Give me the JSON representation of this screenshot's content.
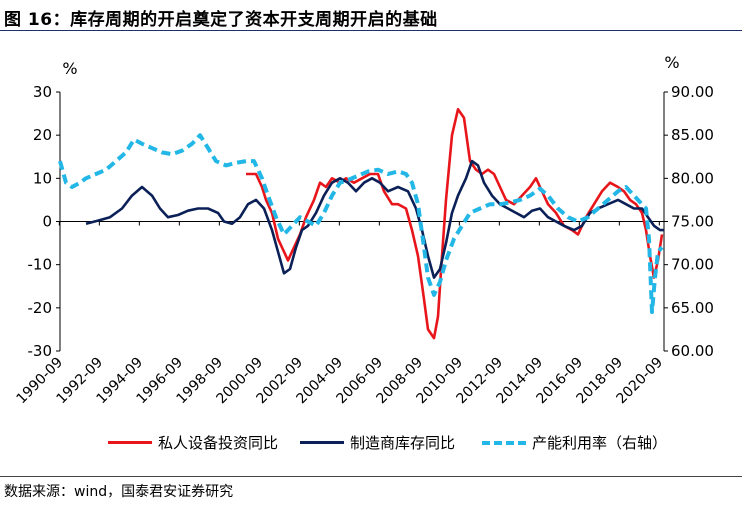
{
  "header": {
    "title": "图 16：库存周期的开启奠定了资本开支周期开启的基础"
  },
  "source": "数据来源：wind，国泰君安证券研究",
  "colors": {
    "red": "#e8161b",
    "navy": "#0b2057",
    "cyan": "#22b7e6"
  },
  "chart_data": {
    "type": "line",
    "left_axis": {
      "unit": "%",
      "ylim": [
        -30,
        30
      ],
      "ticks": [
        "30",
        "20",
        "10",
        "0",
        "-10",
        "-20",
        "-30"
      ]
    },
    "right_axis": {
      "unit": "%",
      "ylim": [
        60,
        90
      ],
      "ticks": [
        "90.00",
        "85.00",
        "80.00",
        "75.00",
        "70.00",
        "65.00",
        "60.00"
      ]
    },
    "x_ticks": [
      "1990-09",
      "1992-09",
      "1994-09",
      "1996-09",
      "1998-09",
      "2000-09",
      "2002-09",
      "2004-09",
      "2006-09",
      "2008-09",
      "2010-09",
      "2012-09",
      "2014-09",
      "2016-09",
      "2018-09",
      "2020-09"
    ],
    "xlim": [
      1990.7,
      2020.9
    ],
    "series": [
      {
        "name": "私人设备投资同比",
        "axis": "left",
        "style": "solid",
        "points": [
          [
            2000.0,
            11
          ],
          [
            2000.5,
            11
          ],
          [
            2000.8,
            8
          ],
          [
            2001.0,
            5
          ],
          [
            2001.3,
            2
          ],
          [
            2001.6,
            -4
          ],
          [
            2001.9,
            -7
          ],
          [
            2002.1,
            -9
          ],
          [
            2002.4,
            -6
          ],
          [
            2002.7,
            -3
          ],
          [
            2003.0,
            1
          ],
          [
            2003.4,
            5
          ],
          [
            2003.7,
            9
          ],
          [
            2004.0,
            8
          ],
          [
            2004.3,
            10
          ],
          [
            2004.7,
            9
          ],
          [
            2005.0,
            10
          ],
          [
            2005.4,
            9
          ],
          [
            2005.8,
            10
          ],
          [
            2006.2,
            11
          ],
          [
            2006.6,
            11
          ],
          [
            2006.9,
            7
          ],
          [
            2007.3,
            4
          ],
          [
            2007.6,
            4
          ],
          [
            2008.0,
            3
          ],
          [
            2008.3,
            -2
          ],
          [
            2008.6,
            -8
          ],
          [
            2008.9,
            -18
          ],
          [
            2009.1,
            -25
          ],
          [
            2009.4,
            -27
          ],
          [
            2009.6,
            -22
          ],
          [
            2009.8,
            -8
          ],
          [
            2010.0,
            5
          ],
          [
            2010.3,
            20
          ],
          [
            2010.6,
            26
          ],
          [
            2010.9,
            24
          ],
          [
            2011.2,
            14
          ],
          [
            2011.5,
            12
          ],
          [
            2011.8,
            11
          ],
          [
            2012.1,
            12
          ],
          [
            2012.4,
            11
          ],
          [
            2012.7,
            8
          ],
          [
            2013.0,
            5
          ],
          [
            2013.4,
            4
          ],
          [
            2013.8,
            6
          ],
          [
            2014.2,
            8
          ],
          [
            2014.5,
            10
          ],
          [
            2014.8,
            7
          ],
          [
            2015.1,
            4
          ],
          [
            2015.5,
            2
          ],
          [
            2015.9,
            -1
          ],
          [
            2016.3,
            -2
          ],
          [
            2016.6,
            -3
          ],
          [
            2017.0,
            1
          ],
          [
            2017.4,
            4
          ],
          [
            2017.8,
            7
          ],
          [
            2018.2,
            9
          ],
          [
            2018.6,
            8
          ],
          [
            2018.9,
            7
          ],
          [
            2019.2,
            5
          ],
          [
            2019.5,
            4
          ],
          [
            2019.8,
            2
          ],
          [
            2020.0,
            -2
          ],
          [
            2020.2,
            -8
          ],
          [
            2020.4,
            -13
          ],
          [
            2020.6,
            -9
          ],
          [
            2020.8,
            -3
          ]
        ]
      },
      {
        "name": "制造商库存同比",
        "axis": "left",
        "style": "solid",
        "points": [
          [
            1992.0,
            -0.5
          ],
          [
            1992.6,
            0.2
          ],
          [
            1993.2,
            1
          ],
          [
            1993.8,
            3
          ],
          [
            1994.3,
            6
          ],
          [
            1994.8,
            8
          ],
          [
            1995.3,
            6
          ],
          [
            1995.7,
            3
          ],
          [
            1996.1,
            1
          ],
          [
            1996.6,
            1.5
          ],
          [
            1997.1,
            2.5
          ],
          [
            1997.6,
            3
          ],
          [
            1998.1,
            3
          ],
          [
            1998.6,
            2
          ],
          [
            1998.9,
            0
          ],
          [
            1999.3,
            -0.5
          ],
          [
            1999.7,
            1
          ],
          [
            2000.1,
            4
          ],
          [
            2000.5,
            5
          ],
          [
            2000.9,
            3
          ],
          [
            2001.3,
            -2
          ],
          [
            2001.6,
            -7
          ],
          [
            2001.9,
            -12
          ],
          [
            2002.2,
            -11
          ],
          [
            2002.5,
            -6
          ],
          [
            2002.8,
            -2
          ],
          [
            2003.1,
            -1
          ],
          [
            2003.5,
            2
          ],
          [
            2003.9,
            6
          ],
          [
            2004.3,
            9
          ],
          [
            2004.7,
            10
          ],
          [
            2005.1,
            9
          ],
          [
            2005.5,
            7
          ],
          [
            2005.9,
            9
          ],
          [
            2006.3,
            10
          ],
          [
            2006.7,
            9
          ],
          [
            2007.1,
            7
          ],
          [
            2007.6,
            8
          ],
          [
            2008.1,
            7
          ],
          [
            2008.5,
            3
          ],
          [
            2008.8,
            -2
          ],
          [
            2009.1,
            -8
          ],
          [
            2009.4,
            -13
          ],
          [
            2009.7,
            -11
          ],
          [
            2010.0,
            -5
          ],
          [
            2010.3,
            2
          ],
          [
            2010.6,
            6
          ],
          [
            2011.0,
            10
          ],
          [
            2011.3,
            14
          ],
          [
            2011.6,
            13
          ],
          [
            2011.9,
            9
          ],
          [
            2012.3,
            6
          ],
          [
            2012.7,
            4
          ],
          [
            2013.1,
            3
          ],
          [
            2013.5,
            2
          ],
          [
            2013.9,
            1
          ],
          [
            2014.3,
            2.5
          ],
          [
            2014.7,
            3
          ],
          [
            2015.1,
            1
          ],
          [
            2015.5,
            0
          ],
          [
            2015.9,
            -1
          ],
          [
            2016.4,
            -2
          ],
          [
            2016.8,
            -1
          ],
          [
            2017.2,
            2
          ],
          [
            2017.6,
            3
          ],
          [
            2018.1,
            4
          ],
          [
            2018.6,
            5
          ],
          [
            2019.0,
            4
          ],
          [
            2019.4,
            3
          ],
          [
            2019.8,
            3
          ],
          [
            2020.1,
            1
          ],
          [
            2020.4,
            -1
          ],
          [
            2020.7,
            -2
          ],
          [
            2020.9,
            -2
          ]
        ]
      },
      {
        "name": "产能利用率（右轴）",
        "axis": "right",
        "style": "dashed",
        "points": [
          [
            1990.7,
            82
          ],
          [
            1991.0,
            79.5
          ],
          [
            1991.3,
            79
          ],
          [
            1991.7,
            79.5
          ],
          [
            1992.0,
            80
          ],
          [
            1992.5,
            80.5
          ],
          [
            1993.0,
            81
          ],
          [
            1993.5,
            82
          ],
          [
            1994.0,
            83
          ],
          [
            1994.4,
            84.5
          ],
          [
            1994.8,
            84
          ],
          [
            1995.3,
            83.5
          ],
          [
            1995.8,
            83
          ],
          [
            1996.3,
            82.8
          ],
          [
            1996.8,
            83.2
          ],
          [
            1997.3,
            84
          ],
          [
            1997.7,
            85
          ],
          [
            1998.1,
            83.5
          ],
          [
            1998.5,
            82
          ],
          [
            1999.0,
            81.5
          ],
          [
            1999.5,
            81.8
          ],
          [
            2000.0,
            82
          ],
          [
            2000.4,
            82
          ],
          [
            2000.8,
            80
          ],
          [
            2001.1,
            78
          ],
          [
            2001.5,
            75.5
          ],
          [
            2001.9,
            73.5
          ],
          [
            2002.3,
            74.5
          ],
          [
            2002.7,
            75.5
          ],
          [
            2003.1,
            75
          ],
          [
            2003.5,
            74.5
          ],
          [
            2003.9,
            76
          ],
          [
            2004.3,
            78
          ],
          [
            2004.7,
            79.5
          ],
          [
            2005.1,
            79.8
          ],
          [
            2005.6,
            80.3
          ],
          [
            2006.1,
            80.8
          ],
          [
            2006.6,
            81
          ],
          [
            2007.1,
            80.5
          ],
          [
            2007.6,
            80.8
          ],
          [
            2008.0,
            80.5
          ],
          [
            2008.3,
            79.5
          ],
          [
            2008.6,
            77
          ],
          [
            2008.9,
            72
          ],
          [
            2009.1,
            68.5
          ],
          [
            2009.4,
            66.5
          ],
          [
            2009.7,
            68
          ],
          [
            2010.0,
            70.5
          ],
          [
            2010.4,
            73
          ],
          [
            2010.8,
            74.5
          ],
          [
            2011.2,
            76
          ],
          [
            2011.7,
            76.5
          ],
          [
            2012.2,
            77
          ],
          [
            2012.7,
            77
          ],
          [
            2013.2,
            77.2
          ],
          [
            2013.7,
            77.5
          ],
          [
            2014.2,
            78
          ],
          [
            2014.7,
            78.8
          ],
          [
            2015.1,
            78
          ],
          [
            2015.6,
            76.5
          ],
          [
            2016.1,
            75.5
          ],
          [
            2016.6,
            75
          ],
          [
            2017.1,
            75.5
          ],
          [
            2017.6,
            76.5
          ],
          [
            2018.1,
            77.5
          ],
          [
            2018.6,
            78.5
          ],
          [
            2019.0,
            79
          ],
          [
            2019.4,
            78
          ],
          [
            2019.8,
            77
          ],
          [
            2020.0,
            76.5
          ],
          [
            2020.15,
            73
          ],
          [
            2020.3,
            64.5
          ],
          [
            2020.45,
            68.5
          ],
          [
            2020.6,
            71.5
          ],
          [
            2020.8,
            72
          ]
        ]
      }
    ]
  }
}
